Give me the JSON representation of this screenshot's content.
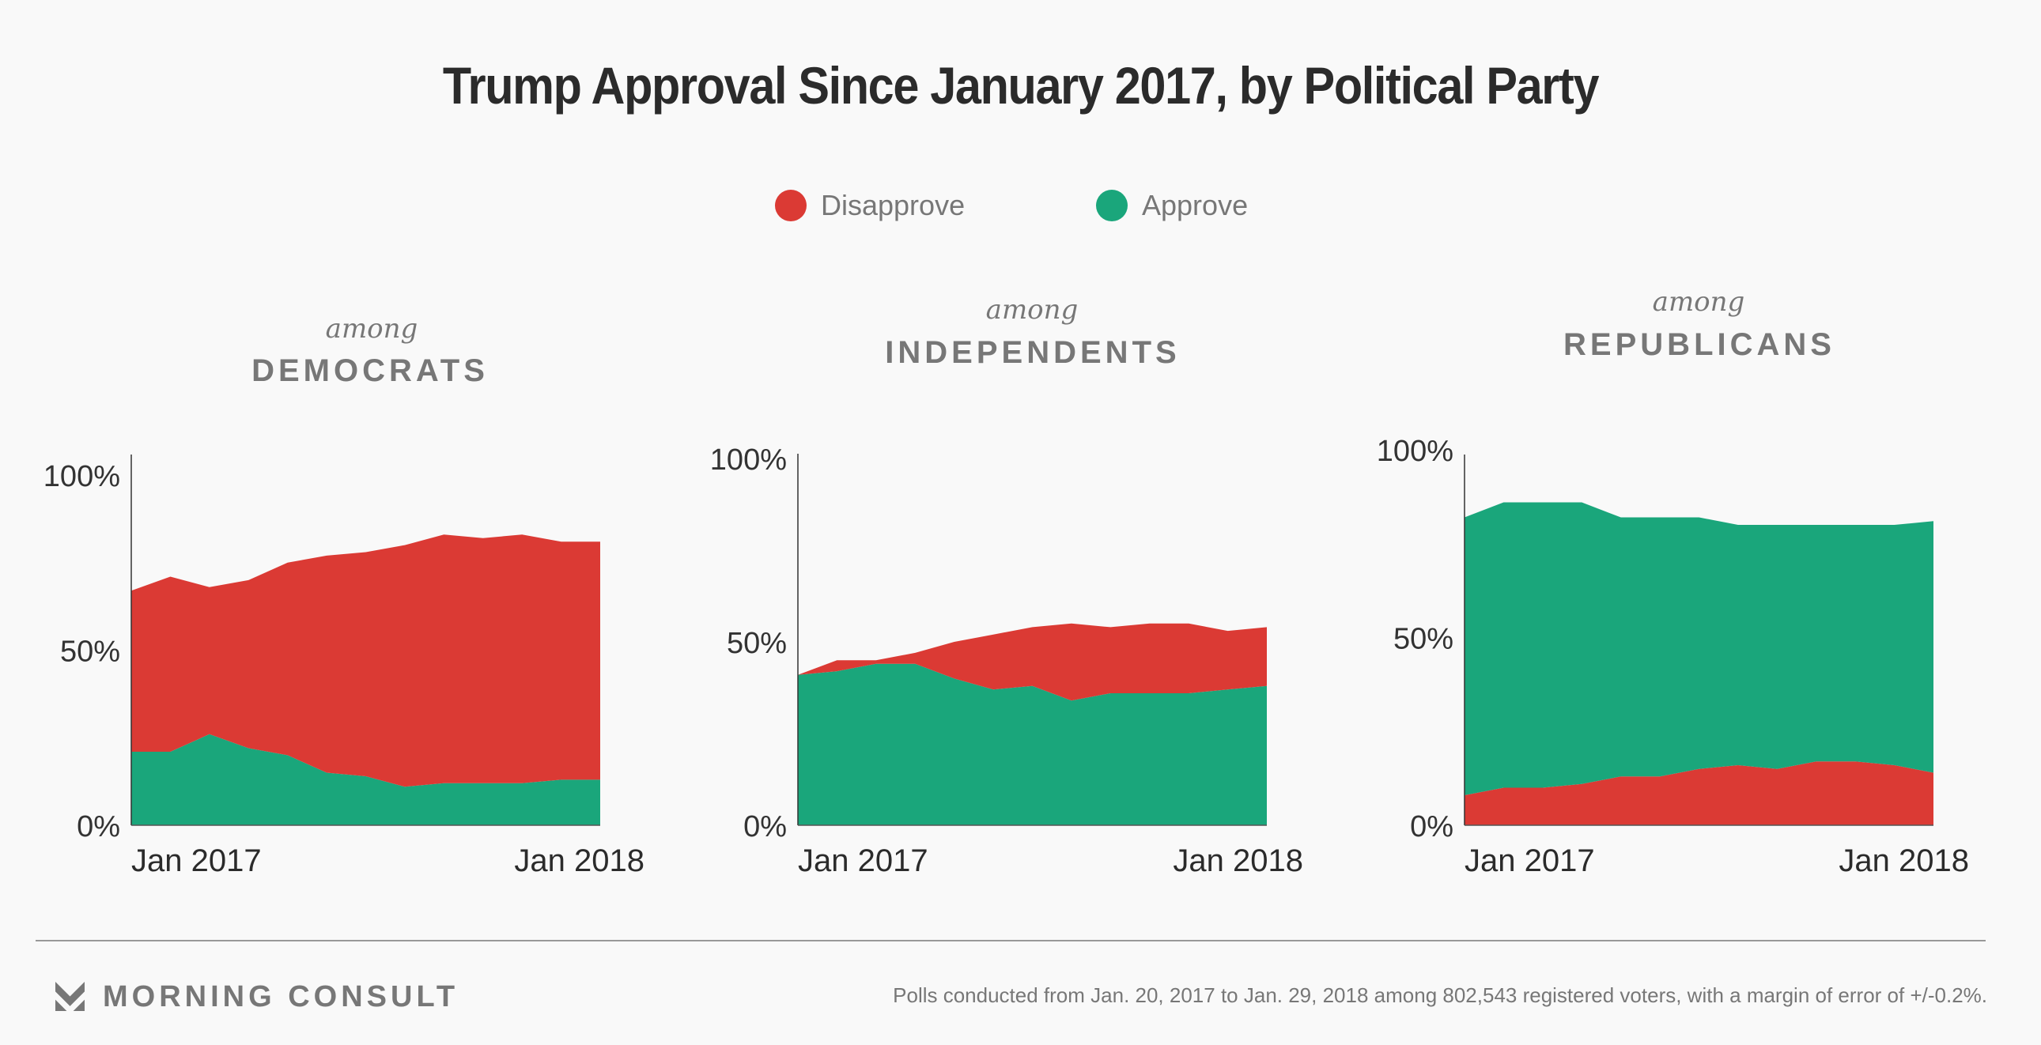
{
  "header": {
    "title": "Trump Approval Since January 2017, by Political Party"
  },
  "legend": [
    {
      "label": "Disapprove",
      "color": "#DB3A34"
    },
    {
      "label": "Approve",
      "color": "#1AA67B"
    }
  ],
  "footer": {
    "brand": "MORNING CONSULT",
    "logo_icon": "morning-consult-chevron-logo",
    "note": "Polls conducted from Jan. 20, 2017 to Jan. 29, 2018 among 802,543 registered voters, with a margin of error of +/-0.2%."
  },
  "panels": [
    {
      "among": "among",
      "party": "DEMOCRATS"
    },
    {
      "among": "among",
      "party": "INDEPENDENTS"
    },
    {
      "among": "among",
      "party": "REPUBLICANS"
    }
  ],
  "chart_data": [
    {
      "type": "area",
      "stacked": true,
      "title": "among DEMOCRATS",
      "xlabel": "",
      "ylabel": "",
      "ylim": [
        0,
        100
      ],
      "yticks": [
        "0%",
        "50%",
        "100%"
      ],
      "xticks": [
        "Jan 2017",
        "Jan 2018"
      ],
      "x_points": 13,
      "stack_order": [
        "Approve",
        "Disapprove"
      ],
      "series": [
        {
          "name": "Approve",
          "color": "#1AA67B",
          "values": [
            21,
            21,
            26,
            22,
            20,
            15,
            14,
            11,
            12,
            12,
            12,
            13,
            13
          ]
        },
        {
          "name": "Disapprove",
          "color": "#DB3A34",
          "values": [
            46,
            50,
            42,
            48,
            55,
            62,
            64,
            69,
            71,
            70,
            71,
            68,
            68
          ]
        }
      ],
      "grid": false,
      "legend": "top-center"
    },
    {
      "type": "area",
      "stacked": true,
      "title": "among INDEPENDENTS",
      "xlabel": "",
      "ylabel": "",
      "ylim": [
        0,
        100
      ],
      "yticks": [
        "0%",
        "50%",
        "100%"
      ],
      "xticks": [
        "Jan 2017",
        "Jan 2018"
      ],
      "x_points": 13,
      "stack_order": [
        "Approve",
        "Disapprove"
      ],
      "series": [
        {
          "name": "Approve",
          "color": "#1AA67B",
          "values": [
            41,
            42,
            44,
            44,
            40,
            37,
            38,
            34,
            36,
            36,
            36,
            37,
            38
          ]
        },
        {
          "name": "Disapprove",
          "color": "#DB3A34",
          "values": [
            0,
            3,
            1,
            3,
            10,
            15,
            16,
            21,
            18,
            19,
            19,
            16,
            16
          ]
        }
      ],
      "grid": false,
      "legend": "top-center"
    },
    {
      "type": "area",
      "stacked": true,
      "title": "among REPUBLICANS",
      "xlabel": "",
      "ylabel": "",
      "ylim": [
        0,
        100
      ],
      "yticks": [
        "0%",
        "50%",
        "100%"
      ],
      "xticks": [
        "Jan 2017",
        "Jan 2018"
      ],
      "x_points": 13,
      "stack_order": [
        "Disapprove",
        "Approve"
      ],
      "series": [
        {
          "name": "Disapprove",
          "color": "#DB3A34",
          "values": [
            8,
            10,
            10,
            11,
            13,
            13,
            15,
            16,
            15,
            17,
            17,
            16,
            14
          ]
        },
        {
          "name": "Approve",
          "color": "#1AA67B",
          "values": [
            74,
            76,
            76,
            75,
            69,
            69,
            67,
            64,
            65,
            63,
            63,
            64,
            67
          ]
        }
      ],
      "grid": false,
      "legend": "top-center"
    }
  ]
}
